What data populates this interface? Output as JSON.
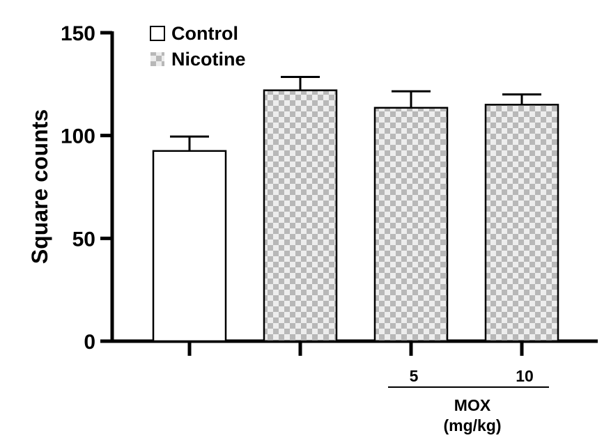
{
  "chart_data": {
    "type": "bar",
    "ylabel": "Square counts",
    "ylim": [
      0,
      150
    ],
    "yticks": [
      0,
      50,
      100,
      150
    ],
    "categories": [
      "",
      "",
      "5",
      "10"
    ],
    "series": [
      {
        "name": "Control",
        "values": [
          92.5,
          null,
          null,
          null
        ],
        "errors": [
          7,
          null,
          null,
          null
        ],
        "fill": "white"
      },
      {
        "name": "Nicotine",
        "values": [
          null,
          122,
          113.5,
          115
        ],
        "errors": [
          null,
          6.5,
          8,
          5
        ],
        "fill": "checkered"
      }
    ],
    "group_labels": {
      "line1": "MOX",
      "line2": "(mg/kg)"
    },
    "legend": {
      "position": "top-left",
      "entries": [
        "Control",
        "Nicotine"
      ]
    },
    "grid": false
  },
  "colors": {
    "bar_border": "#000000",
    "control_fill": "#ffffff",
    "checker_light": "#ededed",
    "checker_dark": "#b8b8b8"
  }
}
